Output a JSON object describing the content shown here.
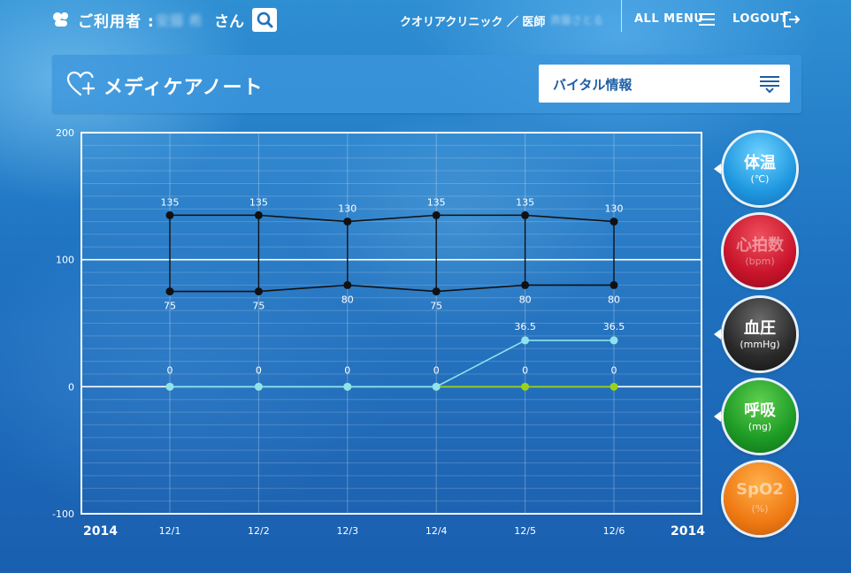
{
  "header": {
    "user_label": "ご利用者 :",
    "user_name": "安藤 希",
    "user_suffix": "さん",
    "clinic": "クオリアクリニック ／ 医師",
    "doctor_name": "斉藤さとる",
    "all_menu": "ALL MENU",
    "logout": "LOGOUT"
  },
  "title_bar": {
    "title": "メディケアノート",
    "select_value": "バイタル情報"
  },
  "side_buttons": [
    {
      "label": "体温",
      "unit": "(℃)",
      "color": "#1f98e0"
    },
    {
      "label": "心拍数",
      "unit": "(bpm)",
      "color": "#c8142b"
    },
    {
      "label": "血圧",
      "unit": "(mmHg)",
      "color": "#2a2a2a"
    },
    {
      "label": "呼吸",
      "unit": "(mg)",
      "color": "#1d9a25"
    },
    {
      "label": "SpO2",
      "unit": "(%)",
      "color": "#f07a14"
    }
  ],
  "chart_data": {
    "type": "line",
    "categories": [
      "12/1",
      "12/2",
      "12/3",
      "12/4",
      "12/5",
      "12/6"
    ],
    "year_left": "2014",
    "year_right": "2014",
    "ylim": [
      -100,
      200
    ],
    "yticks": [
      200,
      100,
      0,
      -100
    ],
    "grid": true,
    "series": [
      {
        "values": [
          135,
          135,
          130,
          135,
          135,
          130
        ],
        "color": "#111111",
        "labels": [
          "135",
          "135",
          "130",
          "135",
          "135",
          "130"
        ]
      },
      {
        "values": [
          75,
          75,
          80,
          75,
          80,
          80
        ],
        "color": "#111111",
        "labels": [
          "75",
          "75",
          "80",
          "75",
          "80",
          "80"
        ]
      },
      {
        "values": [
          0,
          0,
          0,
          0,
          0,
          0
        ],
        "color": "#9ad21a",
        "labels": [
          "0",
          "0",
          "0",
          "0",
          "0",
          "0"
        ]
      },
      {
        "values": [
          0,
          0,
          0,
          0,
          36.5,
          36.5
        ],
        "color": "#8fe3ec",
        "labels": [
          "",
          "",
          "",
          "",
          "36.5",
          "36.5"
        ]
      }
    ]
  }
}
